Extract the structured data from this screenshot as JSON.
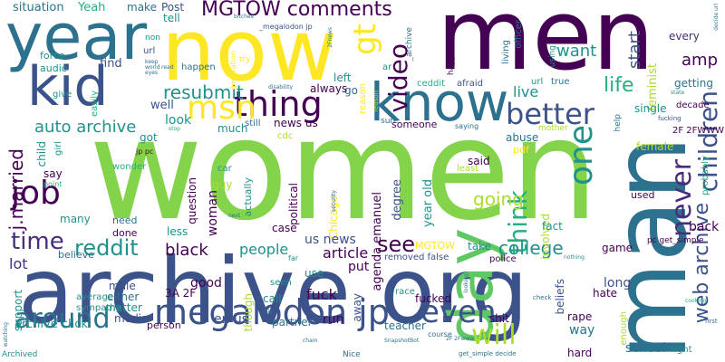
{
  "words": {
    "women": "women",
    "archive_org": "archive org",
    "men": "men",
    "now": "now",
    "year": "year",
    "man": "man",
    "kid": "kid",
    "know": "know",
    "day": "day",
    "megalodon_jp": "megalodon jp",
    "mgtow_comments": "MGTOW comments",
    "thing": "thing",
    "better": "better",
    "msn": "msn",
    "video": "video",
    "gt": "gt",
    "job": "job",
    "never": "never",
    "children": "children",
    "one": "one",
    "time": "time",
    "reddit": "reddit",
    "around": "around",
    "think": "think",
    "will": "will",
    "auto_archive": "auto archive",
    "resubmit": "resubmit",
    "j_married": "j.married",
    "life": "life",
    "going": "going",
    "even": "even",
    "see": "see",
    "college": "college",
    "web_archive": "web archive",
    "amp": "amp",
    "want": "want",
    "start": "start",
    "live": "live",
    "situation": "situation",
    "yeah": "Yeah",
    "make": "make",
    "post": "Post",
    "tell": "tell",
    "megalodon_jp_small": "_megalodon jp",
    "non": "non",
    "url": "url",
    "force": "force",
    "audio": "audio",
    "find": "find",
    "happen": "happen",
    "left": "left",
    "go": "go",
    "always": "always",
    "reason": "reason",
    "ar": "ar",
    "ceddit": "ceddit",
    "afraid": "afraid",
    "living": "living",
    "officer": "officer",
    "happened": "happened",
    "using": "using",
    "feminist": "feminist",
    "getting": "getting",
    "every": "every",
    "decade": "decade",
    "true": "true",
    "url_small": "url",
    "give": "give",
    "easily": "easily",
    "well": "well",
    "news_us": "news us",
    "sure": "sure",
    "someone": "someone",
    "saying": "saying",
    "mother": "mother",
    "help": "help",
    "single": "single",
    "fucking": "fucking",
    "two_f_fwww": "2F 2FWWW",
    "situation_small": "situation",
    "look": "look",
    "much": "much",
    "still": "still",
    "cdc": "cdc",
    "abuse": "abuse",
    "pdf": "pdf",
    "female": "female",
    "got": "got",
    "jp_pc": "jp pc",
    "child": "child",
    "girl": "girl",
    "say": "say",
    "point": "point",
    "wonder": "wonder",
    "said": "said",
    "least": "least",
    "year_old": "year old",
    "agenda_emanuel": "agenda emanuel",
    "degree": "degree",
    "chicago": "Chicago",
    "political": "political",
    "actually": "actually",
    "guy": "guy",
    "car": "car",
    "question": "question",
    "woman": "woman",
    "many": "many",
    "need": "need",
    "done": "done",
    "less": "less",
    "lot": "lot",
    "believe": "believe",
    "black": "black",
    "people": "people",
    "case": "case",
    "us_news": "us news",
    "article": "article",
    "mgtow_small": "MGTOW",
    "removed_false": "removed false",
    "take": "take",
    "involved": "involved",
    "fact": "fact",
    "police": "police",
    "game": "game",
    "used": "used",
    "back": "back",
    "pc_get_simple": "pc get_simple",
    "probably": "probably",
    "male": "male",
    "either": "either",
    "three_a_2f": "3A 2F",
    "matter": "matter",
    "good": "good",
    "seen": "seen",
    "call": "call",
    "fuck": "fuck",
    "use": "use",
    "put": "put",
    "though": "though",
    "away": "away",
    "beliefs": "beliefs",
    "long": "long",
    "hate": "hate",
    "support": "support",
    "average": "average",
    "sympathy": "sympathy",
    "archive_click": "archive click",
    "media": "media",
    "person": "person",
    "en_us": "en us",
    "partner": "partner",
    "run": "run",
    "race": "race",
    "fucked": "fucked",
    "shit": "shit",
    "teacher": "teacher",
    "course": "course",
    "get_simple_decide": "get_simple decide",
    "rape": "rape",
    "way": "way",
    "enough": "enough",
    "school": "school",
    "right": "right",
    "hard": "hard",
    "first": "first",
    "nice": "Nice",
    "archived": "Archived",
    "state": "state",
    "disability": "disability",
    "generation": "generation",
    "try": "try",
    "security": "security",
    "watching": "watching",
    "check": "check",
    "looking": "looking",
    "nothing": "nothing",
    "bitches": "bitches",
    "decide_url": "decide url",
    "two_f_news": "2Fnews",
    "archive_small": "_archive",
    "far": "far",
    "next": "next",
    "cooking": "cooking",
    "stop": "stop",
    "keep": "keep",
    "world": "world",
    "eyes": "eyes",
    "read": "read",
    "snapshot": "SnapshotBot",
    "two_f_www": "2F 2Fwww",
    "chain": "chain",
    "hit": "hit",
    "reason_small": "reason"
  }
}
